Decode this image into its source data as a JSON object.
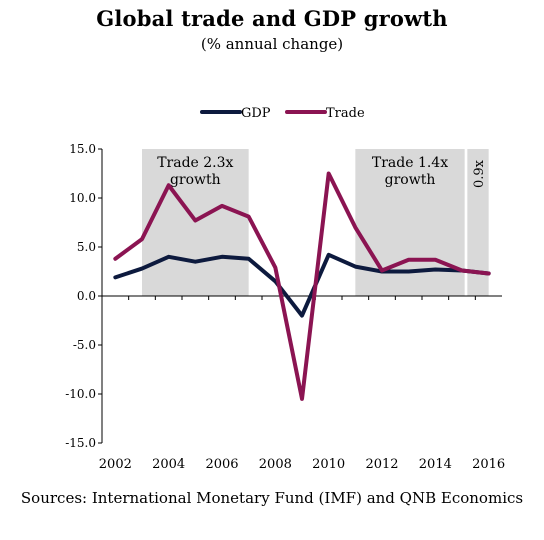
{
  "chart_data": {
    "type": "line",
    "title": "Global trade and GDP growth",
    "subtitle": "(% annual change)",
    "x": [
      2002,
      2003,
      2004,
      2005,
      2006,
      2007,
      2008,
      2009,
      2010,
      2011,
      2012,
      2013,
      2014,
      2015,
      2016
    ],
    "xticks": [
      "2002",
      "2004",
      "2006",
      "2008",
      "2010",
      "2012",
      "2014",
      "2016"
    ],
    "ylim": [
      -15,
      15
    ],
    "yticks": [
      "15.0",
      "10.0",
      "5.0",
      "0.0",
      "-5.0",
      "-10.0",
      "-15.0"
    ],
    "legend_placement": "top",
    "series": [
      {
        "name": "GDP",
        "color": "#0d1a3e",
        "values": [
          1.9,
          2.8,
          4.0,
          3.5,
          4.0,
          3.8,
          1.5,
          -2.0,
          4.2,
          3.0,
          2.5,
          2.5,
          2.7,
          2.6,
          2.3
        ]
      },
      {
        "name": "Trade",
        "color": "#8b1452",
        "values": [
          3.8,
          5.8,
          11.3,
          7.7,
          9.2,
          8.1,
          2.9,
          -10.5,
          12.5,
          7.0,
          2.6,
          3.7,
          3.7,
          2.6,
          2.3
        ]
      }
    ],
    "shaded_regions": [
      {
        "start": 2003,
        "end": 2007,
        "label_lines": [
          "Trade 2.3x",
          "growth"
        ]
      },
      {
        "start": 2011,
        "end": 2015.1,
        "label_lines": [
          "Trade 1.4x",
          "growth"
        ]
      },
      {
        "start": 2015.2,
        "end": 2016,
        "label_lines": [
          "0.9x"
        ]
      }
    ],
    "region_color": "#d9d9d9",
    "source": "Sources: International Monetary Fund (IMF) and QNB Economics"
  }
}
